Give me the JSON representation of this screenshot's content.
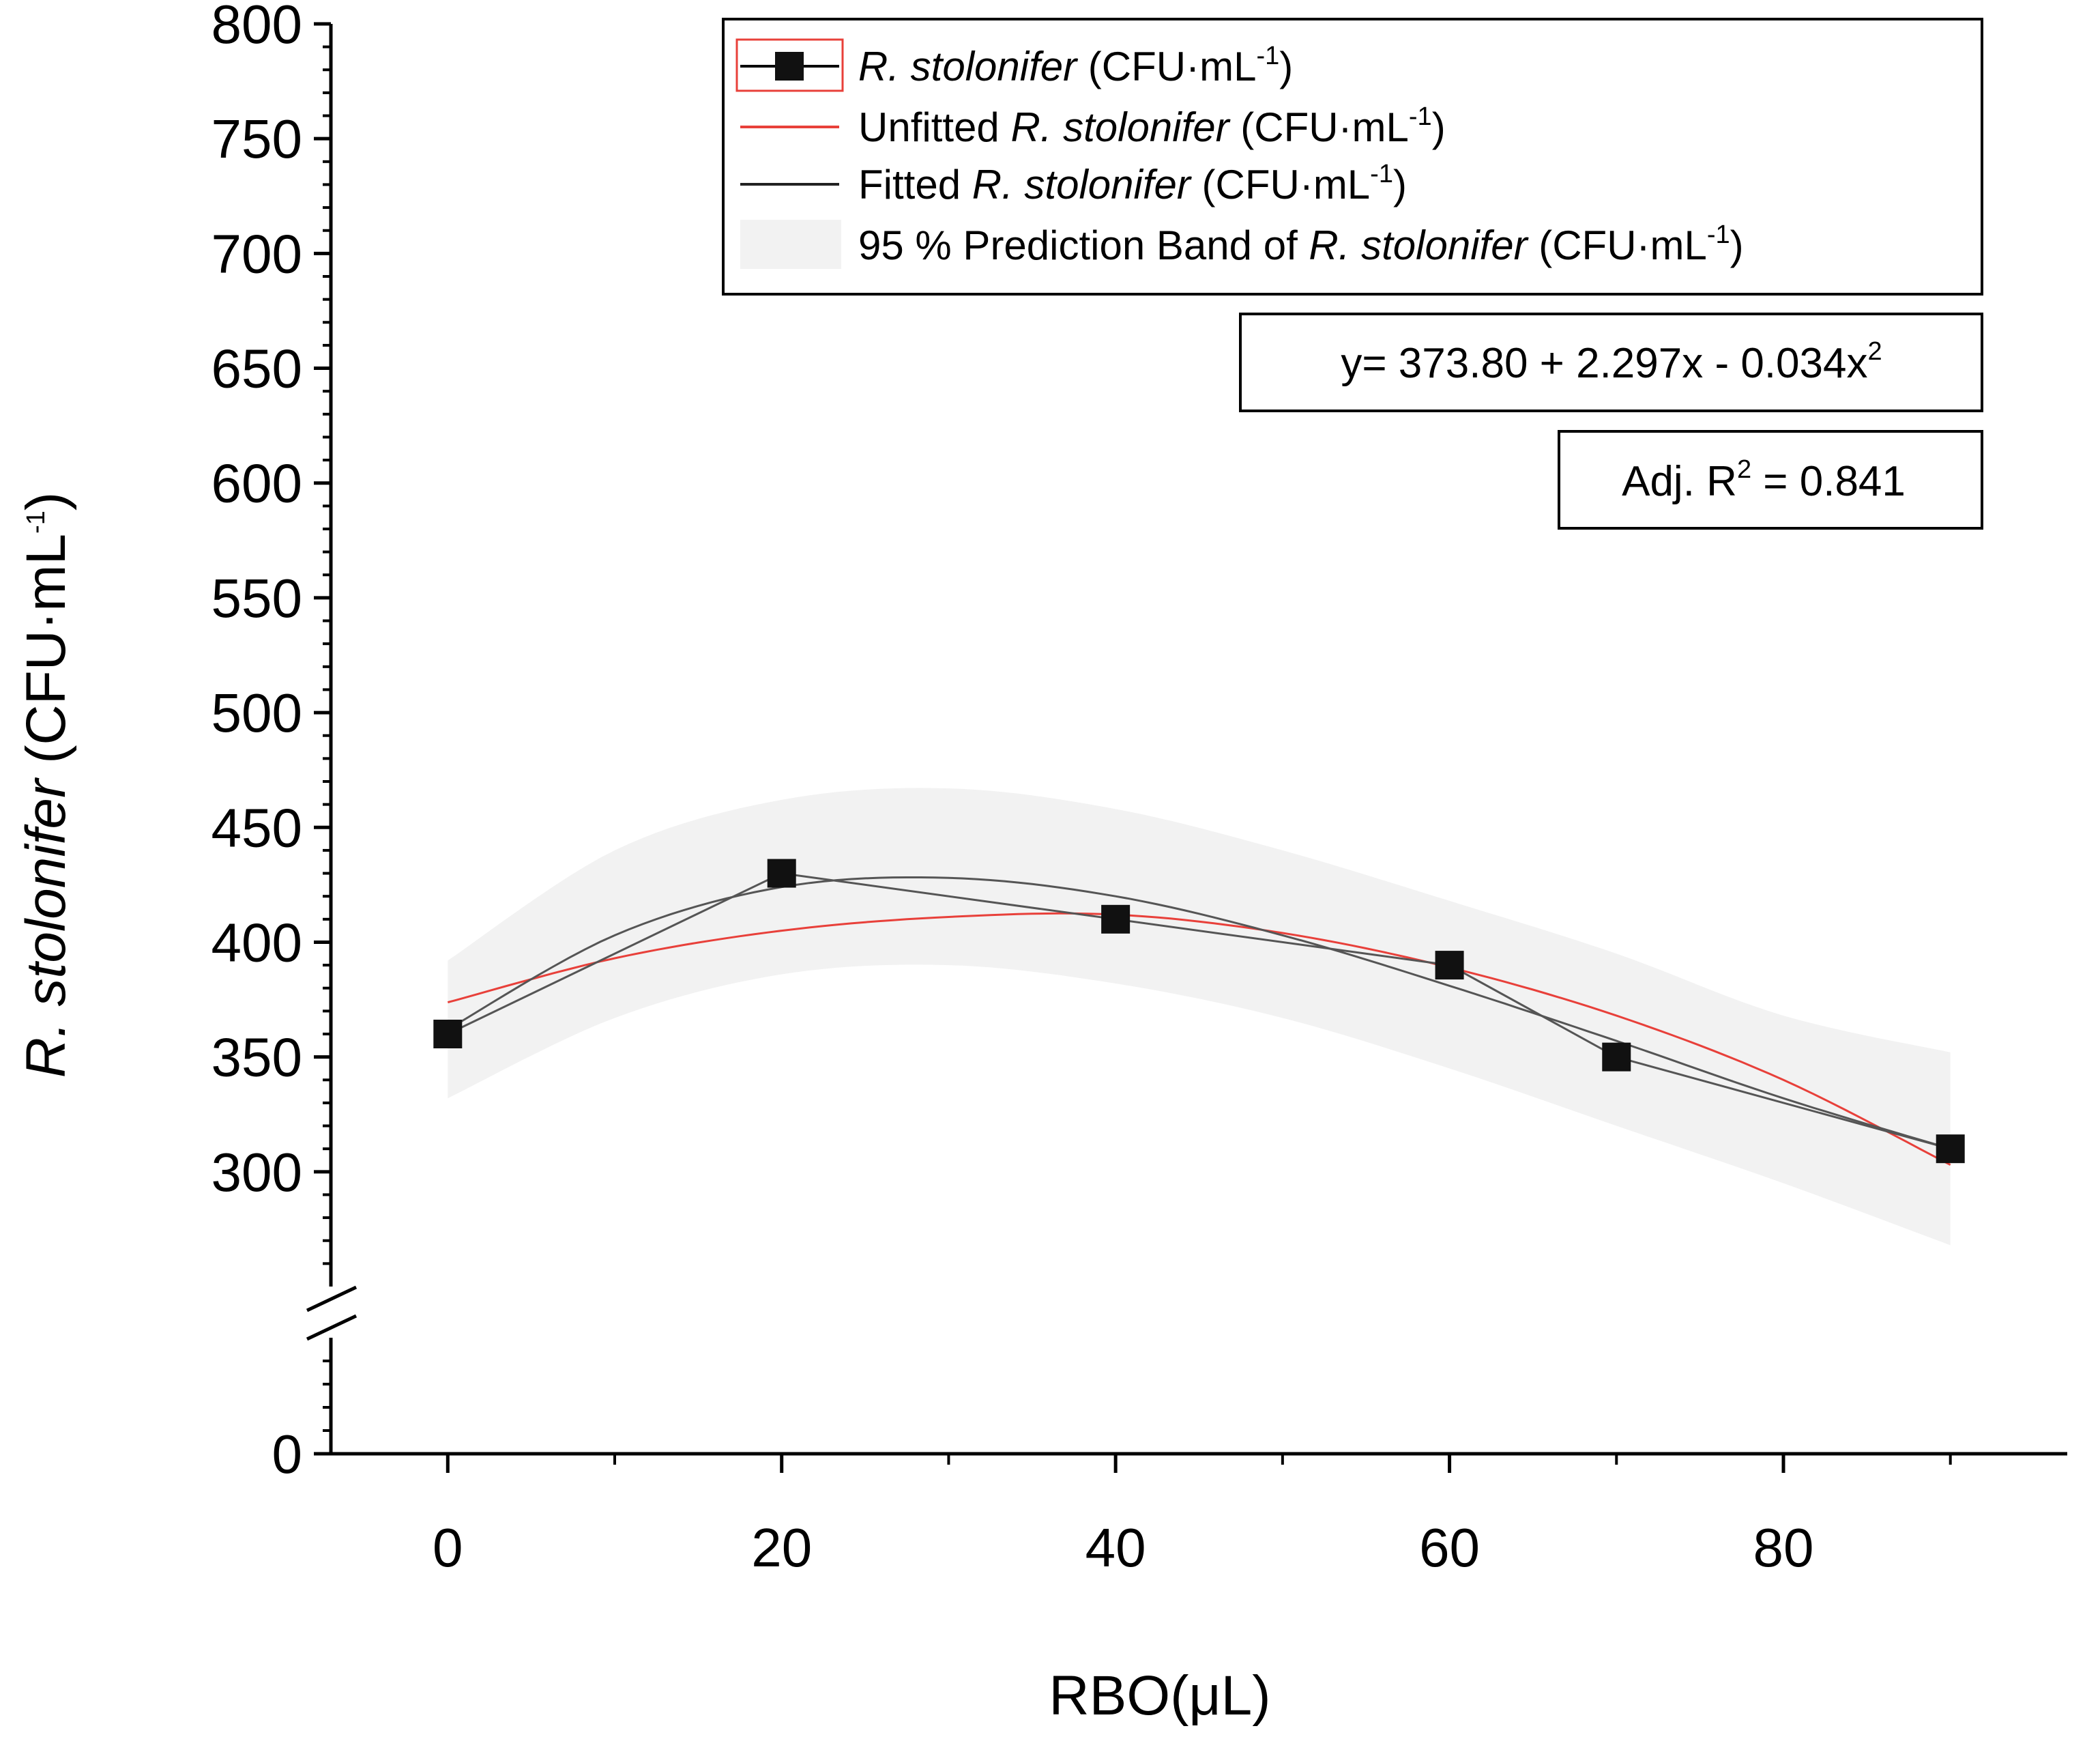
{
  "chart_data": {
    "type": "scatter",
    "xlabel": "RBO(μL)",
    "ylabel": {
      "italic": "R. stolonifer",
      "normal": " (CFU·mL",
      "sup": "-1",
      "close": ")"
    },
    "xlim": [
      -7,
      97
    ],
    "x_ticks": [
      0,
      20,
      40,
      60,
      80
    ],
    "x_tick_labels": [
      "0",
      "20",
      "40",
      "60",
      "80"
    ],
    "x_minor_ticks": [
      10,
      30,
      50,
      70,
      90
    ],
    "y_ticks_upper": [
      300,
      350,
      400,
      450,
      500,
      550,
      600,
      650,
      700,
      750,
      800
    ],
    "y_tick_labels_upper": [
      "300",
      "350",
      "400",
      "450",
      "500",
      "550",
      "600",
      "650",
      "700",
      "750",
      "800"
    ],
    "y_upper_range": [
      250,
      800
    ],
    "y_lower_tick_label": "0",
    "axis_break": "y",
    "series": [
      {
        "name": "R. stolonifer (CFU·mL-1)",
        "style": "points connected",
        "color": "#000000",
        "x": [
          0,
          20,
          40,
          60,
          70,
          90
        ],
        "y": [
          360,
          430,
          410,
          390,
          350,
          310
        ]
      },
      {
        "name": "Unfitted R. stolonifer (CFU·mL-1)",
        "style": "line",
        "color": "#e8403a",
        "x": [
          0,
          10,
          20,
          30,
          40,
          50,
          60,
          70,
          80,
          90
        ],
        "y": [
          373.8,
          393,
          405,
          411,
          412,
          404,
          389,
          368,
          340,
          303
        ]
      },
      {
        "name": "Fitted R. stolonifer (CFU·mL-1)",
        "style": "line",
        "color": "#555555",
        "x": [
          0,
          10,
          20,
          30,
          40,
          50,
          60,
          70,
          80,
          90
        ],
        "y": [
          362,
          403,
          424,
          428,
          420,
          403,
          381,
          357,
          332,
          310
        ]
      },
      {
        "name": "95 % Prediction Band of R. stolonifer (CFU·mL-1)",
        "style": "band",
        "color": "#f2f2f2",
        "x": [
          0,
          10,
          20,
          30,
          40,
          50,
          60,
          70,
          80,
          90
        ],
        "upper": [
          392,
          440,
          462,
          467,
          458,
          440,
          418,
          395,
          368,
          352
        ],
        "lower": [
          332,
          367,
          386,
          390,
          382,
          367,
          345,
          320,
          295,
          268
        ]
      }
    ],
    "legend": {
      "position": "top-right",
      "entries": [
        {
          "pre": "",
          "italic": "R. stolonifer",
          "post": " (CFU·mL",
          "sup": "-1",
          "close": ")"
        },
        {
          "pre": "Unfitted ",
          "italic": "R. stolonifer",
          "post": " (CFU·mL",
          "sup": "-1",
          "close": ")"
        },
        {
          "pre": "Fitted ",
          "italic": "R. stolonifer",
          "post": " (CFU·mL",
          "sup": "-1",
          "close": ")"
        },
        {
          "pre": "95 % Prediction Band of ",
          "italic": "R. stolonifer",
          "post": " (CFU·mL",
          "sup": "-1",
          "close": ")"
        }
      ]
    },
    "annotations": {
      "equation": {
        "text": "y= 373.80 + 2.297x - 0.034x",
        "sup": "2"
      },
      "r2": {
        "pre": "Adj. R",
        "sup": "2",
        "post": " = 0.841"
      }
    }
  }
}
